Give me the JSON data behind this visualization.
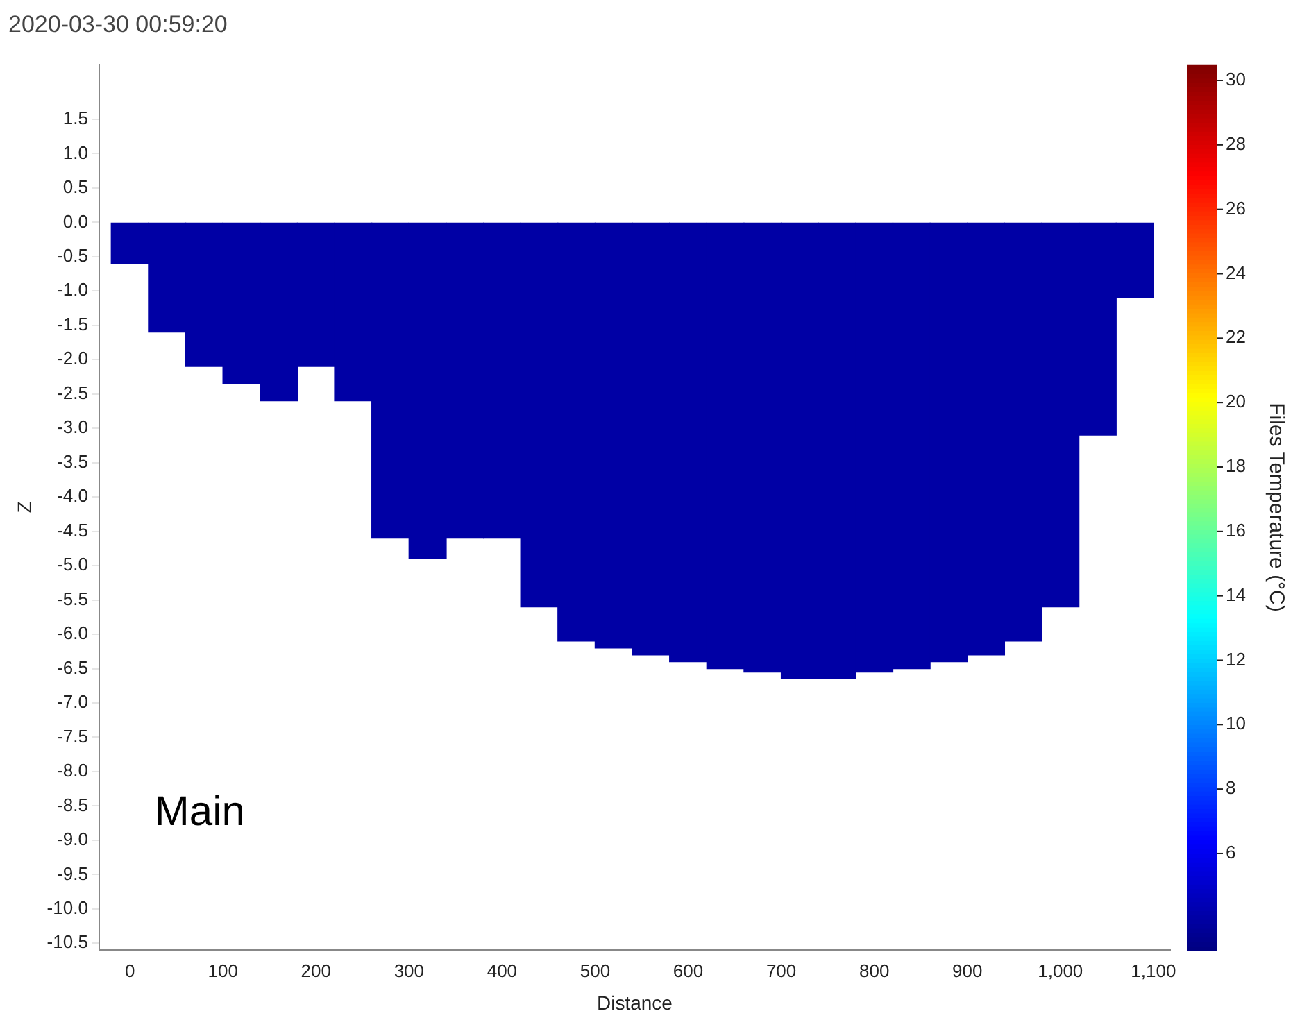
{
  "chart_data": {
    "type": "bar",
    "title": "2020-03-30 00:59:20",
    "xlabel": "Distance",
    "ylabel": "Z",
    "clabel": "Files Temperature (°C)",
    "annotations": [
      "Main"
    ],
    "x": [
      0,
      40,
      80,
      120,
      160,
      200,
      240,
      280,
      320,
      360,
      400,
      440,
      480,
      520,
      560,
      600,
      640,
      680,
      720,
      760,
      800,
      840,
      880,
      920,
      960,
      1000,
      1040,
      1080
    ],
    "values": [
      -0.6,
      -1.6,
      -2.1,
      -2.35,
      -2.6,
      -2.1,
      -2.6,
      -4.6,
      -4.9,
      -4.6,
      -4.6,
      -5.6,
      -6.1,
      -6.2,
      -6.3,
      -6.4,
      -6.5,
      -6.55,
      -6.65,
      -6.65,
      -6.55,
      -6.5,
      -6.4,
      -6.3,
      -6.1,
      -5.6,
      -3.1,
      -1.1
    ],
    "cvalues": [
      4,
      4,
      4,
      4,
      4,
      4,
      4,
      4,
      4,
      4,
      4,
      4,
      4,
      4,
      4,
      4,
      4,
      4,
      4,
      4,
      4,
      4,
      4,
      4,
      4,
      4,
      4,
      4
    ],
    "clim": [
      3,
      30.5
    ],
    "cticks": [
      6,
      8,
      10,
      12,
      14,
      16,
      18,
      20,
      22,
      24,
      26,
      28,
      30
    ],
    "xlim": [
      -33,
      1118
    ],
    "xticks": [
      0,
      100,
      200,
      300,
      400,
      500,
      600,
      700,
      800,
      900,
      {
        "value": 1000,
        "label": "1,000"
      },
      {
        "value": 1100,
        "label": "1,100"
      }
    ],
    "ylim": [
      -10.6,
      2.3
    ],
    "yticks": [
      {
        "value": 1.5,
        "label": "1.5"
      },
      {
        "value": 1,
        "label": "1.0"
      },
      {
        "value": 0.5,
        "label": "0.5"
      },
      {
        "value": 0,
        "label": "0.0"
      },
      {
        "value": -0.5,
        "label": "-0.5"
      },
      {
        "value": -1,
        "label": "-1.0"
      },
      {
        "value": -1.5,
        "label": "-1.5"
      },
      {
        "value": -2,
        "label": "-2.0"
      },
      {
        "value": -2.5,
        "label": "-2.5"
      },
      {
        "value": -3,
        "label": "-3.0"
      },
      {
        "value": -3.5,
        "label": "-3.5"
      },
      {
        "value": -4,
        "label": "-4.0"
      },
      {
        "value": -4.5,
        "label": "-4.5"
      },
      {
        "value": -5,
        "label": "-5.0"
      },
      {
        "value": -5.5,
        "label": "-5.5"
      },
      {
        "value": -6,
        "label": "-6.0"
      },
      {
        "value": -6.5,
        "label": "-6.5"
      },
      {
        "value": -7,
        "label": "-7.0"
      },
      {
        "value": -7.5,
        "label": "-7.5"
      },
      {
        "value": -8,
        "label": "-8.0"
      },
      {
        "value": -8.5,
        "label": "-8.5"
      },
      {
        "value": -9,
        "label": "-9.0"
      },
      {
        "value": -9.5,
        "label": "-9.5"
      },
      {
        "value": -10,
        "label": "-10.0"
      },
      {
        "value": -10.5,
        "label": "-10.5"
      }
    ],
    "grid": false,
    "legend": false
  }
}
